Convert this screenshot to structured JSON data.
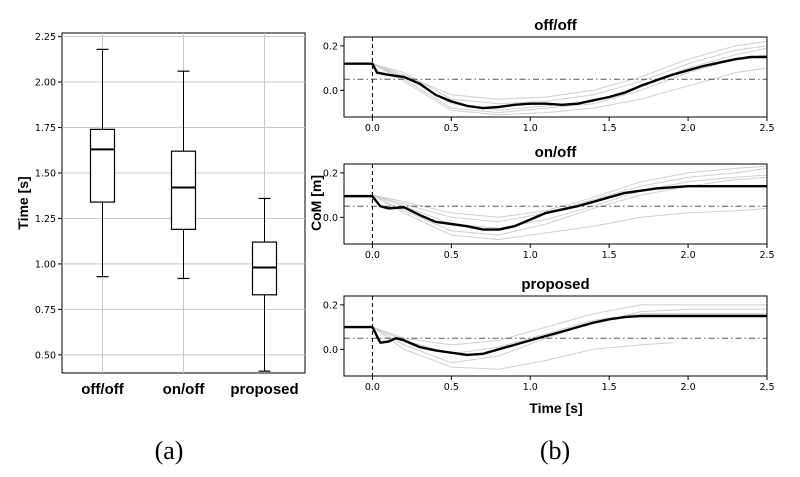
{
  "panel_labels": {
    "a": "(a)",
    "b": "(b)"
  },
  "colors": {
    "median": "#000000",
    "trial": "#cfcfcf",
    "grid": "#c8c8c8",
    "box": "#000000"
  },
  "chart_data": [
    {
      "type": "box",
      "ylabel": "Time [s]",
      "ylim": [
        0.4,
        2.27
      ],
      "yticks": [
        "2.25",
        "2.00",
        "1.75",
        "1.50",
        "1.25",
        "1.00",
        "0.75",
        "0.50"
      ],
      "grid": true,
      "categories": [
        "off/off",
        "on/off",
        "proposed"
      ],
      "boxes": [
        {
          "name": "off/off",
          "min": 0.93,
          "q1": 1.34,
          "median": 1.63,
          "q3": 1.74,
          "max": 2.18
        },
        {
          "name": "on/off",
          "min": 0.92,
          "q1": 1.19,
          "median": 1.42,
          "q3": 1.62,
          "max": 2.06
        },
        {
          "name": "proposed",
          "min": 0.41,
          "q1": 0.83,
          "median": 0.98,
          "q3": 1.12,
          "max": 1.36
        }
      ]
    },
    {
      "type": "line",
      "xlabel": "Time [s]",
      "ylabel": "CoM [m]",
      "xlim": [
        -0.18,
        2.5
      ],
      "xticks": [
        "0.0",
        "0.5",
        "1.0",
        "1.5",
        "2.0",
        "2.5"
      ],
      "ylim": [
        -0.12,
        0.24
      ],
      "yticks": [
        "0.2",
        "0.0"
      ],
      "threshold": 0.05,
      "onset": 0.0,
      "subplots": [
        {
          "title": "off/off",
          "median": {
            "x": [
              -0.18,
              0.0,
              0.03,
              0.1,
              0.2,
              0.3,
              0.4,
              0.5,
              0.6,
              0.7,
              0.8,
              0.9,
              1.0,
              1.1,
              1.2,
              1.3,
              1.4,
              1.5,
              1.6,
              1.7,
              1.8,
              1.9,
              2.0,
              2.1,
              2.2,
              2.3,
              2.4,
              2.5
            ],
            "y": [
              0.12,
              0.12,
              0.08,
              0.07,
              0.06,
              0.03,
              -0.02,
              -0.05,
              -0.07,
              -0.08,
              -0.075,
              -0.065,
              -0.06,
              -0.06,
              -0.065,
              -0.06,
              -0.045,
              -0.03,
              -0.01,
              0.02,
              0.045,
              0.07,
              0.09,
              0.11,
              0.125,
              0.14,
              0.15,
              0.15
            ]
          },
          "trials": [
            {
              "x": [
                -0.18,
                0.0,
                0.2,
                0.5,
                0.8,
                1.1,
                1.4,
                1.7,
                2.0,
                2.3,
                2.5
              ],
              "y": [
                0.12,
                0.12,
                0.05,
                -0.08,
                -0.1,
                -0.08,
                -0.06,
                0.0,
                0.08,
                0.14,
                0.16
              ]
            },
            {
              "x": [
                -0.18,
                0.0,
                0.2,
                0.5,
                0.8,
                1.1,
                1.4,
                1.7,
                2.0,
                2.3,
                2.5
              ],
              "y": [
                0.12,
                0.12,
                0.08,
                -0.04,
                -0.06,
                -0.05,
                -0.02,
                0.04,
                0.12,
                0.18,
                0.2
              ]
            },
            {
              "x": [
                -0.18,
                0.0,
                0.2,
                0.5,
                0.8,
                1.1,
                1.4,
                1.7,
                2.0,
                2.3,
                2.5
              ],
              "y": [
                0.12,
                0.12,
                0.04,
                -0.09,
                -0.11,
                -0.1,
                -0.08,
                -0.04,
                0.02,
                0.08,
                0.1
              ]
            },
            {
              "x": [
                -0.18,
                0.0,
                0.2,
                0.5,
                0.8,
                1.1,
                1.4,
                1.7,
                2.0,
                2.3,
                2.5
              ],
              "y": [
                0.12,
                0.12,
                0.07,
                -0.02,
                -0.04,
                -0.03,
                0.0,
                0.06,
                0.14,
                0.2,
                0.22
              ]
            },
            {
              "x": [
                -0.18,
                0.0,
                0.2,
                0.5,
                0.8,
                1.1,
                1.4,
                1.7,
                2.0,
                2.3,
                2.5
              ],
              "y": [
                0.12,
                0.12,
                0.06,
                -0.06,
                -0.09,
                -0.07,
                -0.05,
                0.02,
                0.1,
                0.16,
                0.19
              ]
            }
          ]
        },
        {
          "title": "on/off",
          "median": {
            "x": [
              -0.18,
              0.0,
              0.05,
              0.1,
              0.2,
              0.3,
              0.4,
              0.5,
              0.6,
              0.7,
              0.8,
              0.9,
              1.0,
              1.1,
              1.2,
              1.3,
              1.4,
              1.5,
              1.6,
              1.7,
              1.8,
              1.9,
              2.0,
              2.2,
              2.5
            ],
            "y": [
              0.095,
              0.095,
              0.05,
              0.04,
              0.045,
              0.01,
              -0.02,
              -0.03,
              -0.04,
              -0.055,
              -0.055,
              -0.04,
              -0.01,
              0.02,
              0.035,
              0.05,
              0.07,
              0.09,
              0.11,
              0.12,
              0.13,
              0.135,
              0.14,
              0.14,
              0.14
            ]
          },
          "trials": [
            {
              "x": [
                -0.18,
                0.0,
                0.2,
                0.5,
                0.8,
                1.1,
                1.4,
                1.7,
                2.0,
                2.3,
                2.5
              ],
              "y": [
                0.1,
                0.1,
                0.03,
                -0.06,
                -0.08,
                -0.03,
                0.04,
                0.1,
                0.14,
                0.17,
                0.18
              ]
            },
            {
              "x": [
                -0.18,
                0.0,
                0.2,
                0.5,
                0.8,
                1.1,
                1.4,
                1.7,
                2.0,
                2.3,
                2.5
              ],
              "y": [
                0.1,
                0.1,
                0.06,
                0.0,
                -0.02,
                0.02,
                0.08,
                0.14,
                0.18,
                0.2,
                0.22
              ]
            },
            {
              "x": [
                -0.18,
                0.0,
                0.2,
                0.5,
                0.8,
                1.1,
                1.4,
                1.7,
                2.0,
                2.3,
                2.5
              ],
              "y": [
                0.1,
                0.1,
                0.02,
                -0.08,
                -0.1,
                -0.07,
                -0.04,
                0.0,
                0.02,
                0.03,
                0.04
              ]
            },
            {
              "x": [
                -0.18,
                0.0,
                0.2,
                0.5,
                0.8,
                1.1,
                1.4,
                1.7,
                2.0,
                2.3,
                2.5
              ],
              "y": [
                0.1,
                0.1,
                0.05,
                -0.03,
                -0.05,
                -0.01,
                0.05,
                0.12,
                0.16,
                0.18,
                0.19
              ]
            },
            {
              "x": [
                -0.18,
                0.0,
                0.2,
                0.5,
                0.8,
                1.1,
                1.4,
                1.7,
                2.0,
                2.3,
                2.5
              ],
              "y": [
                0.1,
                0.1,
                0.07,
                0.02,
                0.0,
                0.03,
                0.09,
                0.16,
                0.2,
                0.22,
                0.23
              ]
            }
          ]
        },
        {
          "title": "proposed",
          "median": {
            "x": [
              -0.18,
              0.0,
              0.05,
              0.1,
              0.15,
              0.2,
              0.3,
              0.4,
              0.5,
              0.6,
              0.7,
              0.8,
              0.9,
              1.0,
              1.1,
              1.2,
              1.3,
              1.4,
              1.5,
              1.6,
              1.7,
              1.8,
              2.0,
              2.5
            ],
            "y": [
              0.1,
              0.1,
              0.03,
              0.035,
              0.05,
              0.04,
              0.01,
              -0.005,
              -0.015,
              -0.025,
              -0.02,
              0.0,
              0.02,
              0.04,
              0.06,
              0.08,
              0.1,
              0.12,
              0.135,
              0.145,
              0.15,
              0.15,
              0.15,
              0.15
            ]
          },
          "trials": [
            {
              "x": [
                -0.18,
                0.0,
                0.2,
                0.5,
                0.8,
                1.1,
                1.4,
                1.7,
                2.0,
                2.3,
                2.5
              ],
              "y": [
                0.1,
                0.1,
                0.02,
                -0.06,
                -0.03,
                0.05,
                0.12,
                0.17,
                0.18,
                0.18,
                0.18
              ]
            },
            {
              "x": [
                -0.18,
                0.0,
                0.2,
                0.5,
                0.8,
                1.1,
                1.4,
                1.7,
                2.0,
                2.3,
                2.5
              ],
              "y": [
                0.1,
                0.1,
                0.05,
                0.02,
                0.04,
                0.1,
                0.16,
                0.2,
                0.2,
                0.2,
                0.2
              ]
            },
            {
              "x": [
                -0.18,
                0.0,
                0.2,
                0.5,
                0.8,
                1.1,
                1.4,
                1.7,
                1.9
              ],
              "y": [
                0.1,
                0.1,
                0.0,
                -0.08,
                -0.09,
                -0.05,
                0.0,
                0.02,
                0.03
              ]
            },
            {
              "x": [
                -0.18,
                0.0,
                0.2,
                0.5,
                0.8,
                1.1,
                1.4,
                1.7,
                2.0,
                2.3,
                2.5
              ],
              "y": [
                0.1,
                0.1,
                0.04,
                -0.02,
                0.01,
                0.07,
                0.13,
                0.16,
                0.16,
                0.16,
                0.16
              ]
            }
          ]
        }
      ]
    }
  ]
}
